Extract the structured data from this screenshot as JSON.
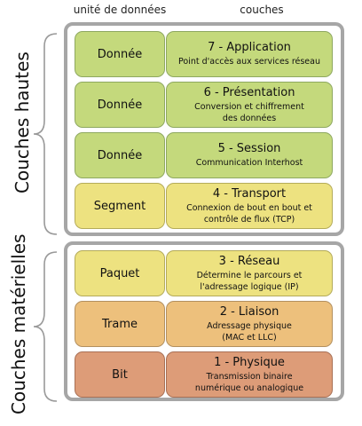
{
  "headers": {
    "unit": "unité de données",
    "layers": "couches"
  },
  "groups": {
    "top_label": "Couches hautes",
    "bottom_label": "Couches matérielles"
  },
  "rows": [
    {
      "unit": "Donnée",
      "title": "7 - Application",
      "description": "Point d'accès aux services réseau",
      "color": "#c4d97c"
    },
    {
      "unit": "Donnée",
      "title": "6 - Présentation",
      "description": "Conversion et chiffrement des données",
      "color": "#c4d97c"
    },
    {
      "unit": "Donnée",
      "title": "5 - Session",
      "description": "Communication Interhost",
      "color": "#c4d97c"
    },
    {
      "unit": "Segment",
      "title": "4 - Transport",
      "description": "Connexion de bout en bout et contrôle de flux (TCP)",
      "color": "#ede280"
    },
    {
      "unit": "Paquet",
      "title": "3 - Réseau",
      "description": "Détermine le parcours et l'adressage logique (IP)",
      "color": "#ede280"
    },
    {
      "unit": "Trame",
      "title": "2 - Liaison",
      "description": "Adressage physique (MAC et LLC)",
      "color": "#edc07c"
    },
    {
      "unit": "Bit",
      "title": "1 - Physique",
      "description": "Transmission binaire numérique ou analogique",
      "color": "#dd9c78"
    }
  ]
}
